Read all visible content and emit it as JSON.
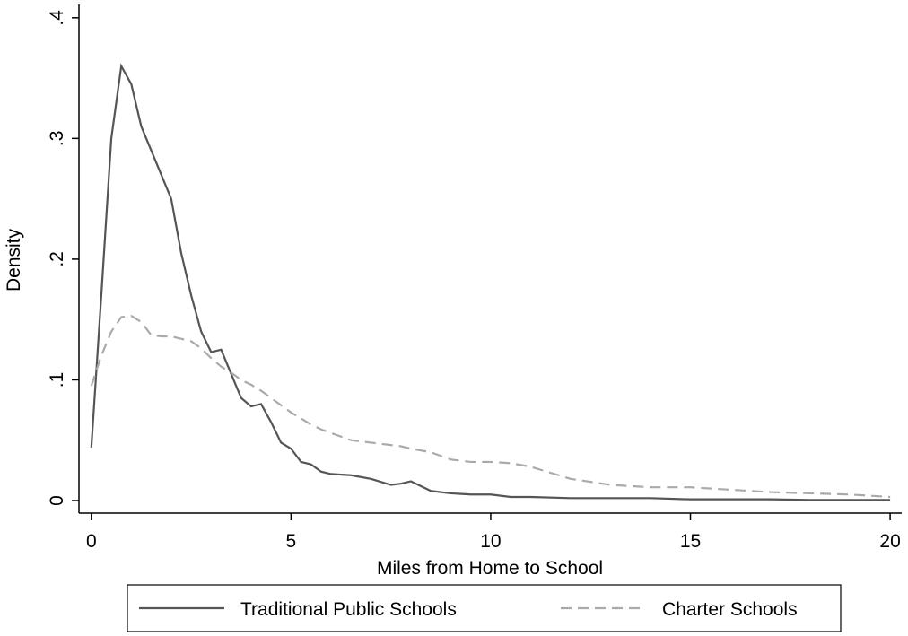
{
  "chart_data": {
    "type": "line",
    "x_label": "Miles from Home to School",
    "y_label": "Density",
    "x": [
      0,
      0.25,
      0.5,
      0.75,
      1,
      1.25,
      1.5,
      1.75,
      2,
      2.25,
      2.5,
      2.75,
      3,
      3.25,
      3.5,
      3.75,
      4,
      4.25,
      4.5,
      4.75,
      5,
      5.25,
      5.5,
      5.75,
      6,
      6.5,
      7,
      7.5,
      7.75,
      8,
      8.5,
      9,
      9.5,
      10,
      10.5,
      11,
      12,
      13,
      14,
      15,
      16,
      17,
      18,
      19,
      20
    ],
    "series": [
      {
        "name": "Traditional Public Schools",
        "color": "#555555",
        "linestyle": "solid",
        "values": [
          0.044,
          0.17,
          0.3,
          0.36,
          0.345,
          0.31,
          0.29,
          0.27,
          0.25,
          0.205,
          0.17,
          0.14,
          0.123,
          0.125,
          0.105,
          0.085,
          0.078,
          0.08,
          0.065,
          0.048,
          0.043,
          0.032,
          0.03,
          0.024,
          0.022,
          0.021,
          0.018,
          0.013,
          0.014,
          0.016,
          0.008,
          0.006,
          0.005,
          0.005,
          0.003,
          0.003,
          0.002,
          0.002,
          0.002,
          0.001,
          0.001,
          0.001,
          0.0005,
          0.0005,
          0.0005
        ]
      },
      {
        "name": "Charter Schools",
        "color": "#aaaaaa",
        "linestyle": "dashed",
        "values": [
          0.095,
          0.12,
          0.14,
          0.152,
          0.153,
          0.148,
          0.137,
          0.136,
          0.136,
          0.134,
          0.132,
          0.126,
          0.118,
          0.111,
          0.106,
          0.1,
          0.096,
          0.091,
          0.085,
          0.079,
          0.073,
          0.068,
          0.063,
          0.059,
          0.056,
          0.05,
          0.048,
          0.046,
          0.045,
          0.043,
          0.04,
          0.034,
          0.032,
          0.032,
          0.031,
          0.028,
          0.018,
          0.013,
          0.011,
          0.011,
          0.009,
          0.007,
          0.006,
          0.005,
          0.003
        ]
      }
    ],
    "xlim": [
      -0.31,
      20.29
    ],
    "xticks": [
      0,
      5,
      10,
      15,
      20
    ],
    "ylim": [
      -0.0104,
      0.411
    ],
    "yticks": [
      0,
      {
        "value": 0.1,
        "label": ".1"
      },
      {
        "value": 0.2,
        "label": ".2"
      },
      {
        "value": 0.3,
        "label": ".3"
      },
      {
        "value": 0.4,
        "label": ".4"
      }
    ],
    "grid": false,
    "legend": "bottom"
  }
}
